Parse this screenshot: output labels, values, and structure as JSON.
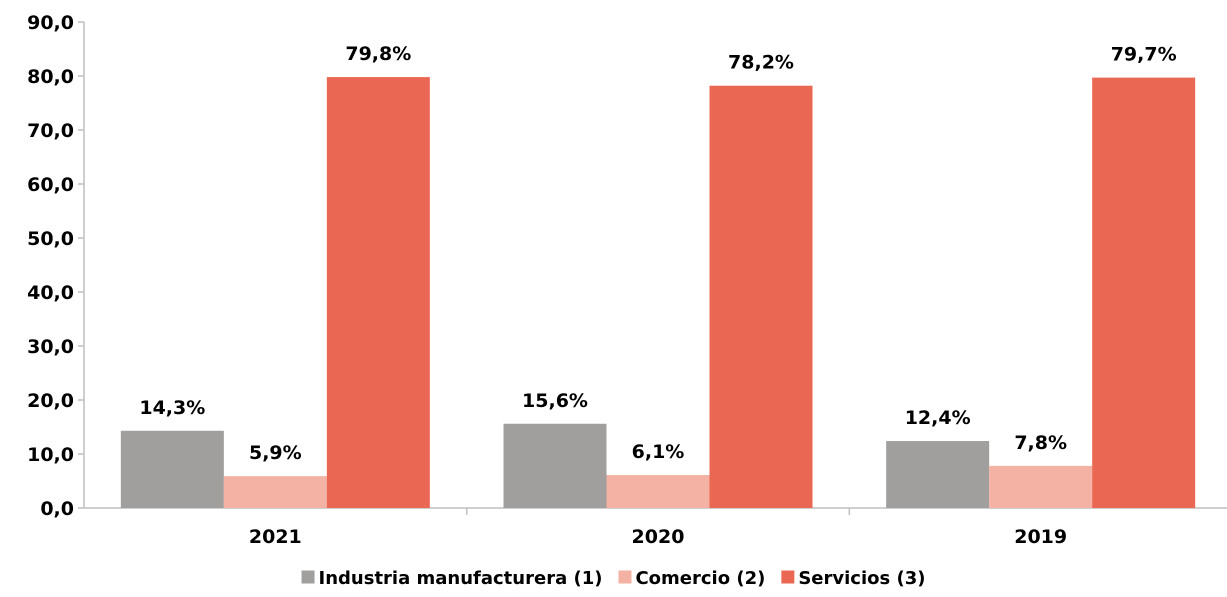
{
  "chart_data": {
    "type": "bar",
    "categories": [
      "2021",
      "2020",
      "2019"
    ],
    "series": [
      {
        "name": "Industria manufacturera (1)",
        "values": [
          14.3,
          15.6,
          12.4
        ],
        "labels": [
          "14,3%",
          "15,6%",
          "12,4%"
        ],
        "color": "#a09f9d"
      },
      {
        "name": "Comercio (2)",
        "values": [
          5.9,
          6.1,
          7.8
        ],
        "labels": [
          "5,9%",
          "6,1%",
          "7,8%"
        ],
        "color": "#f4b2a4"
      },
      {
        "name": "Servicios (3)",
        "values": [
          79.8,
          78.2,
          79.7
        ],
        "labels": [
          "79,8%",
          "78,2%",
          "79,7%"
        ],
        "color": "#ea6853"
      }
    ],
    "ylim": [
      0,
      90
    ],
    "yticks": [
      0,
      10,
      20,
      30,
      40,
      50,
      60,
      70,
      80,
      90
    ],
    "ytick_labels": [
      "0,0",
      "10,0",
      "20,0",
      "30,0",
      "40,0",
      "50,0",
      "60,0",
      "70,0",
      "80,0",
      "90,0"
    ],
    "grid": false,
    "legend_position": "bottom"
  }
}
